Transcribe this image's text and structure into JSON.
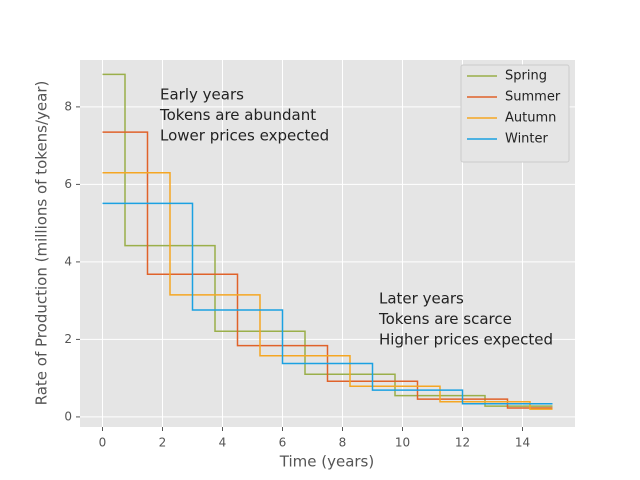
{
  "chart_data": {
    "type": "step",
    "xlabel": "Time (years)",
    "ylabel": "Rate of Production (millions of tokens/year)",
    "annotations": [
      [
        "Early years",
        "Tokens are abundant",
        "Lower prices expected"
      ],
      [
        "Later years",
        "Tokens are scarce",
        "Higher prices expected"
      ]
    ],
    "xlim": [
      -0.75,
      15.75
    ],
    "xticks": [
      0,
      2,
      4,
      6,
      8,
      10,
      12,
      14
    ],
    "ylim": [
      -0.26,
      9.21
    ],
    "yticks": [
      0,
      2,
      4,
      6,
      8
    ],
    "grid": true,
    "legend": "upper right",
    "series": [
      {
        "name": "Spring",
        "color": "#9aaf4a",
        "x": [
          0,
          0.75,
          3.75,
          6.75,
          9.75,
          12.75,
          15
        ],
        "values": [
          8.84,
          4.42,
          2.21,
          1.1,
          0.55,
          0.28,
          0.28
        ]
      },
      {
        "name": "Summer",
        "color": "#e0622a",
        "x": [
          0,
          1.5,
          4.5,
          7.5,
          10.5,
          13.5,
          15
        ],
        "values": [
          7.35,
          3.68,
          1.84,
          0.92,
          0.46,
          0.23,
          0.23
        ]
      },
      {
        "name": "Autumn",
        "color": "#f5a623",
        "x": [
          0,
          2.25,
          5.25,
          8.25,
          11.25,
          14.25,
          15
        ],
        "values": [
          6.3,
          3.15,
          1.58,
          0.79,
          0.39,
          0.2,
          0.2
        ]
      },
      {
        "name": "Winter",
        "color": "#1ba1e2",
        "x": [
          0,
          3,
          6,
          9,
          12,
          15
        ],
        "values": [
          5.51,
          2.76,
          1.38,
          0.69,
          0.34,
          0.34
        ]
      }
    ]
  }
}
